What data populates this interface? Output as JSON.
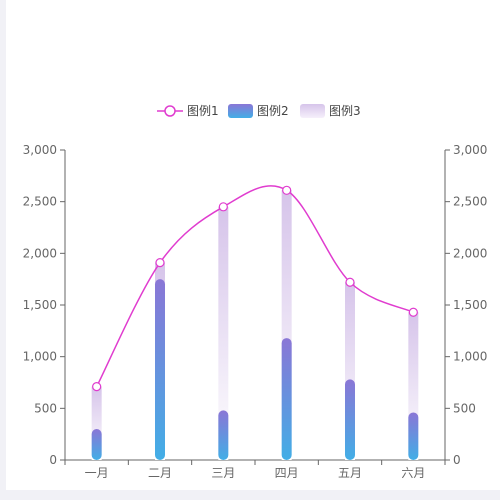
{
  "chart_data": {
    "type": "bar",
    "categories": [
      "一月",
      "二月",
      "三月",
      "四月",
      "五月",
      "六月"
    ],
    "series": [
      {
        "name": "图例1",
        "kind": "line",
        "color": "#e03ccf",
        "values": [
          710,
          1910,
          2450,
          2610,
          1720,
          1430
        ]
      },
      {
        "name": "图例2",
        "kind": "bar",
        "colors": [
          "#8a76d6",
          "#42aee6"
        ],
        "values": [
          300,
          1750,
          480,
          1180,
          780,
          460
        ]
      },
      {
        "name": "图例3",
        "kind": "bar-background",
        "colors": [
          "#d6c4ea",
          "#ffffff"
        ],
        "values": [
          710,
          1910,
          2450,
          2610,
          1720,
          1430
        ]
      }
    ],
    "ylim": [
      0,
      3000
    ],
    "yticks": [
      "0",
      "500",
      "1,000",
      "1,500",
      "2,000",
      "2,500",
      "3,000"
    ],
    "ytick_values": [
      0,
      500,
      1000,
      1500,
      2000,
      2500,
      3000
    ],
    "y2ticks": [
      "0",
      "500",
      "1,000",
      "1,500",
      "2,000",
      "2,500",
      "3,000"
    ],
    "grid": false,
    "legend_position": "top-center",
    "xlabel": "",
    "ylabel": ""
  }
}
